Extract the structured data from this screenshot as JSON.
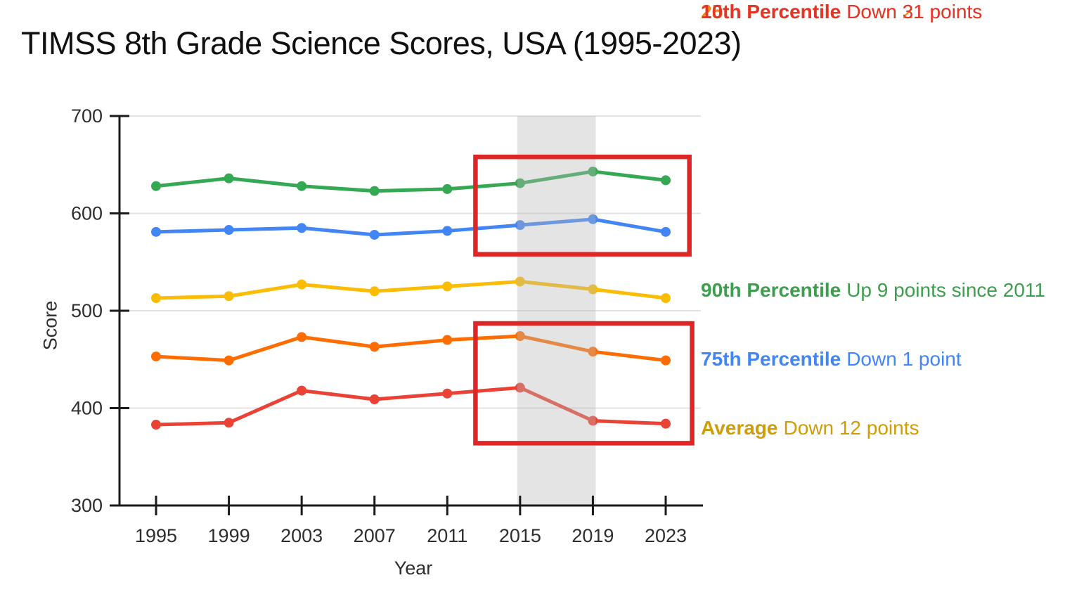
{
  "chart_data": {
    "type": "line",
    "title": "TIMSS 8th Grade Science Scores, USA (1995-2023)",
    "xlabel": "Year",
    "ylabel": "Score",
    "x": [
      1995,
      1999,
      2003,
      2007,
      2011,
      2015,
      2019,
      2023
    ],
    "ylim": [
      300,
      700
    ],
    "yticks": [
      300,
      400,
      500,
      600,
      700
    ],
    "grid": true,
    "legend_position": "right",
    "series": [
      {
        "name": "90th Percentile",
        "note": "Up 9 points since 2011",
        "color": "#34A853",
        "legend_color": "#3D9E4D",
        "values": [
          628,
          636,
          628,
          623,
          625,
          631,
          643,
          634
        ]
      },
      {
        "name": "75th Percentile",
        "note": "Down 1 point",
        "color": "#4285F4",
        "legend_color": "#4285F4",
        "values": [
          581,
          583,
          585,
          578,
          582,
          588,
          594,
          581
        ]
      },
      {
        "name": "Average",
        "note": "Down 12 points",
        "color": "#FBBC04",
        "legend_color": "#D09C09",
        "values": [
          513,
          515,
          527,
          520,
          525,
          530,
          522,
          513
        ]
      },
      {
        "name": "25th Percentile",
        "note": "Down 21 points",
        "color": "#FF6D01",
        "legend_color": "#F8861D",
        "values": [
          453,
          449,
          473,
          463,
          470,
          474,
          458,
          449
        ]
      },
      {
        "name": "10th Percentile",
        "note": "Down 31 points",
        "color": "#EA4335",
        "legend_color": "#E4352B",
        "values": [
          383,
          385,
          418,
          409,
          415,
          421,
          387,
          384
        ]
      }
    ],
    "highlight_band": {
      "from_x": 2015,
      "to_x": 2019,
      "color": "rgba(185,185,185,0.38)"
    },
    "annotation_boxes": [
      {
        "name": "red-box-upper-percentiles",
        "x0": 2012.55,
        "x1": 2024.3,
        "y0": 558,
        "y1": 658,
        "color": "#DF2626"
      },
      {
        "name": "red-box-lower-percentiles",
        "x0": 2012.55,
        "x1": 2024.45,
        "y0": 364,
        "y1": 487,
        "color": "#DF2626"
      }
    ]
  }
}
